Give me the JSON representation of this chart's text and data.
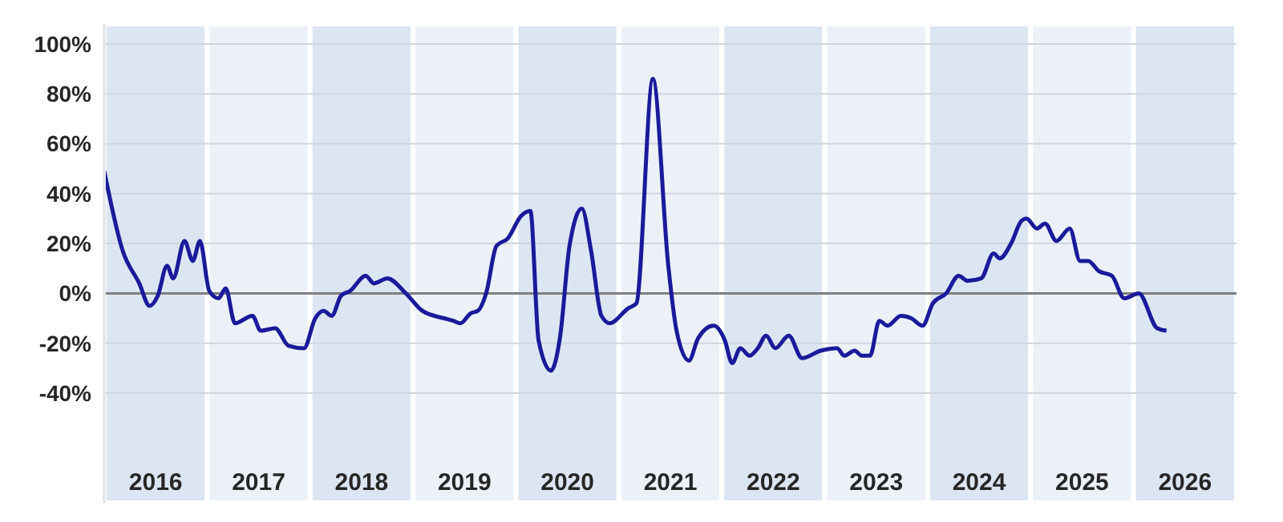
{
  "chart_data": {
    "type": "line",
    "x": [
      2016.0,
      2016.18,
      2016.34,
      2016.44,
      2016.52,
      2016.61,
      2016.67,
      2016.78,
      2016.86,
      2016.93,
      2017.02,
      2017.11,
      2017.18,
      2017.27,
      2017.44,
      2017.52,
      2017.66,
      2017.79,
      2017.94,
      2018.05,
      2018.13,
      2018.21,
      2018.3,
      2018.39,
      2018.54,
      2018.62,
      2018.75,
      2018.93,
      2019.09,
      2019.3,
      2019.39,
      2019.46,
      2019.56,
      2019.63,
      2019.71,
      2019.81,
      2019.92,
      2020.05,
      2020.14,
      2020.22,
      2020.34,
      2020.43,
      2020.52,
      2020.64,
      2020.73,
      2020.83,
      2020.91,
      2021.09,
      2021.17,
      2021.33,
      2021.48,
      2021.56,
      2021.68,
      2021.77,
      2021.92,
      2022.03,
      2022.1,
      2022.18,
      2022.27,
      2022.35,
      2022.43,
      2022.52,
      2022.65,
      2022.78,
      2022.96,
      2023.12,
      2023.19,
      2023.29,
      2023.36,
      2023.44,
      2023.53,
      2023.61,
      2023.74,
      2023.84,
      2023.95,
      2024.05,
      2024.18,
      2024.3,
      2024.39,
      2024.52,
      2024.64,
      2024.7,
      2024.81,
      2024.91,
      2024.96,
      2025.06,
      2025.14,
      2025.25,
      2025.38,
      2025.48,
      2025.56,
      2025.66,
      2025.79,
      2025.91,
      2026.05,
      2026.23,
      2026.32
    ],
    "series": [
      {
        "color": "#1a1a9a",
        "values": [
          49,
          17,
          4,
          -5,
          -1,
          11,
          6,
          21,
          13,
          21,
          1,
          -2,
          2,
          -12,
          -9,
          -15,
          -14,
          -21,
          -22,
          -10,
          -7,
          -9,
          -1,
          1,
          7,
          4,
          6,
          0,
          -7,
          -10,
          -11,
          -12,
          -8,
          -7,
          0,
          19,
          22,
          31,
          33,
          -19,
          -31,
          -17,
          19,
          34,
          17,
          -9,
          -12,
          -6,
          -4,
          86,
          11,
          -15,
          -27,
          -18,
          -13,
          -19,
          -28,
          -22,
          -25,
          -22,
          -17,
          -22,
          -17,
          -26,
          -23,
          -22,
          -25,
          -23,
          -25,
          -25,
          -11,
          -13,
          -9,
          -10,
          -13,
          -4,
          0,
          7,
          5,
          6,
          16,
          14,
          20,
          29,
          30,
          26,
          28,
          21,
          26,
          13,
          13,
          9,
          7,
          -2,
          0,
          -14,
          -15
        ]
      }
    ],
    "xlim": [
      2016,
      2027
    ],
    "xticks": [
      {
        "value": 2016.5,
        "label": "2016"
      },
      {
        "value": 2017.5,
        "label": "2017"
      },
      {
        "value": 2018.5,
        "label": "2018"
      },
      {
        "value": 2019.5,
        "label": "2019"
      },
      {
        "value": 2020.5,
        "label": "2020"
      },
      {
        "value": 2021.5,
        "label": "2021"
      },
      {
        "value": 2022.5,
        "label": "2022"
      },
      {
        "value": 2023.5,
        "label": "2023"
      },
      {
        "value": 2024.5,
        "label": "2024"
      },
      {
        "value": 2025.5,
        "label": "2025"
      },
      {
        "value": 2026.5,
        "label": "2026"
      }
    ],
    "ylim": [
      -84,
      108
    ],
    "yticks": [
      {
        "value": -40,
        "label": "-40%"
      },
      {
        "value": -20,
        "label": "-20%"
      },
      {
        "value": 0,
        "label": "0%"
      },
      {
        "value": 20,
        "label": "20%"
      },
      {
        "value": 40,
        "label": "40%"
      },
      {
        "value": 60,
        "label": "60%"
      },
      {
        "value": 80,
        "label": "80%"
      },
      {
        "value": 100,
        "label": "100%"
      }
    ],
    "grid": "y",
    "legend": false,
    "marker": "none",
    "line_style": "solid",
    "ref_lines": [
      {
        "axis": "y",
        "value": 0,
        "color": "#7f7f7f"
      }
    ],
    "bands": [
      {
        "axis": "x",
        "from": 2016,
        "to": 2017,
        "color": "#dce6f2"
      },
      {
        "axis": "x",
        "from": 2017,
        "to": 2018,
        "color": "#ecf1f8"
      },
      {
        "axis": "x",
        "from": 2018,
        "to": 2019,
        "color": "#dce6f2"
      },
      {
        "axis": "x",
        "from": 2019,
        "to": 2020,
        "color": "#ecf1f8"
      },
      {
        "axis": "x",
        "from": 2020,
        "to": 2021,
        "color": "#dce6f2"
      },
      {
        "axis": "x",
        "from": 2021,
        "to": 2022,
        "color": "#ecf1f8"
      },
      {
        "axis": "x",
        "from": 2022,
        "to": 2023,
        "color": "#dce6f2"
      },
      {
        "axis": "x",
        "from": 2023,
        "to": 2024,
        "color": "#ecf1f8"
      },
      {
        "axis": "x",
        "from": 2024,
        "to": 2025,
        "color": "#dce6f2"
      },
      {
        "axis": "x",
        "from": 2025,
        "to": 2026,
        "color": "#ecf1f8"
      },
      {
        "axis": "x",
        "from": 2026,
        "to": 2027,
        "color": "#dce6f2"
      }
    ]
  }
}
